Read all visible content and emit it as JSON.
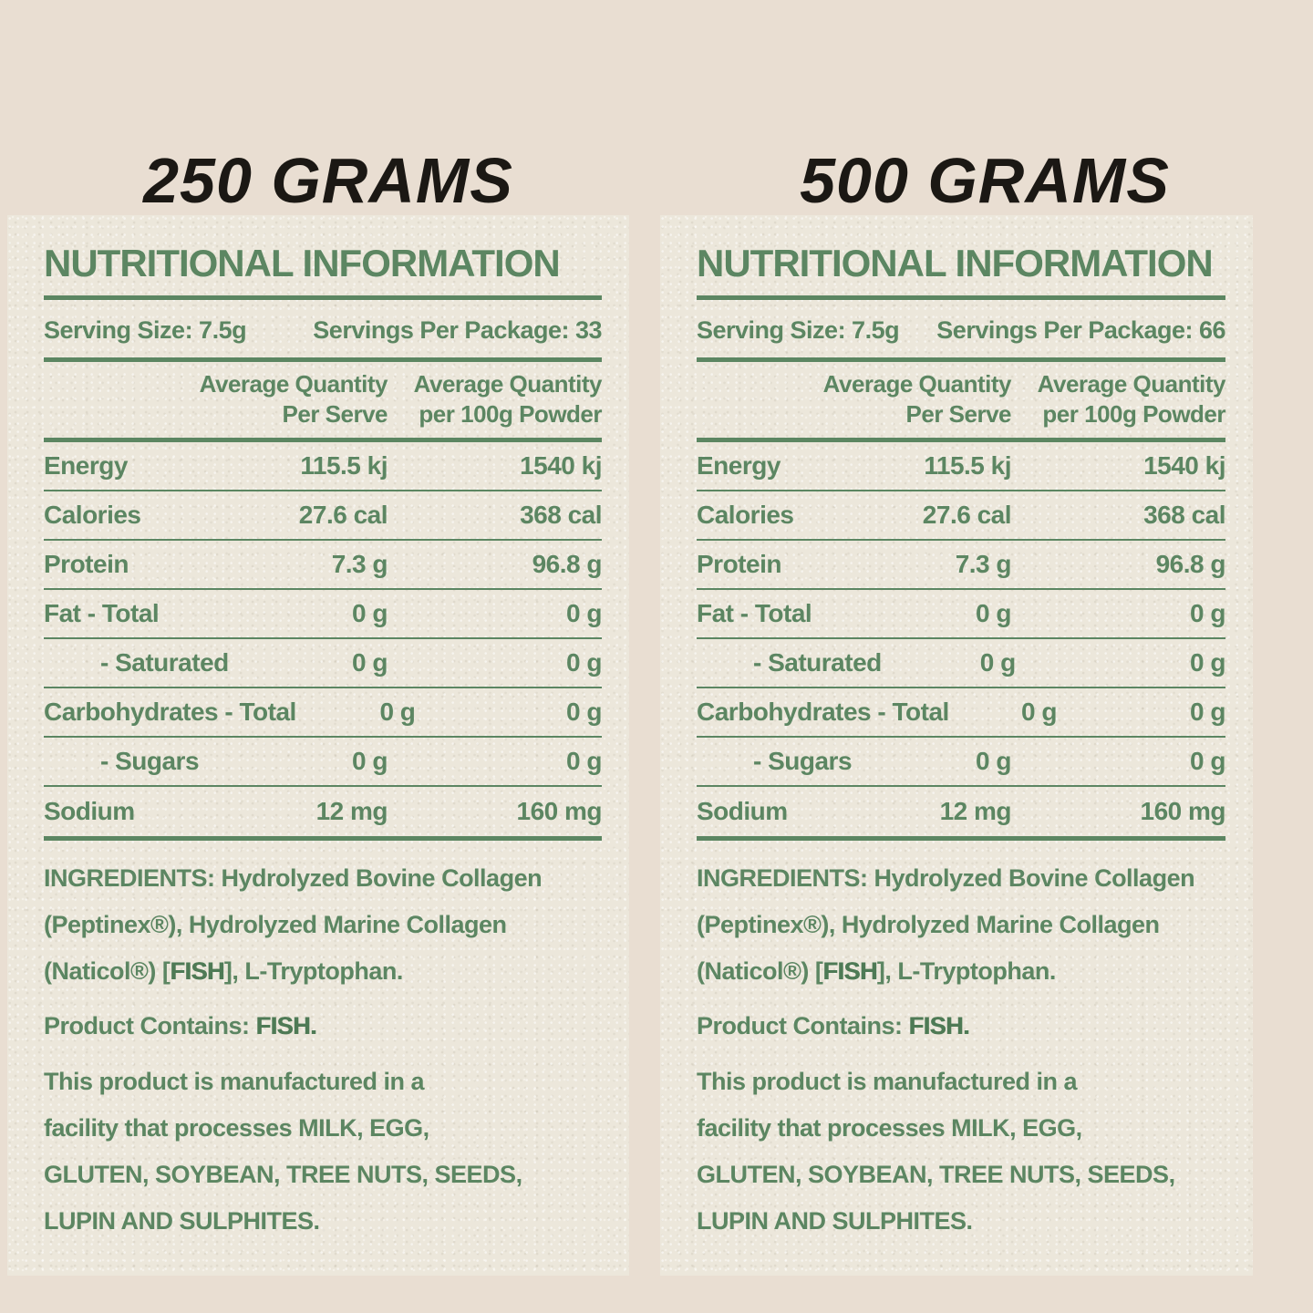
{
  "colors": {
    "page_background": "#e9ded2",
    "paper": "#ece7db",
    "green_text": "#5c8662",
    "heading_black": "#1b1814"
  },
  "panels": [
    {
      "heading": "250 GRAMS",
      "title": "NUTRITIONAL INFORMATION",
      "serving_size_label": "Serving Size: 7.5g",
      "servings_per_package_label": "Servings Per Package: 33",
      "column_headers": {
        "per_serve": "Average Quantity\nPer Serve",
        "per_100g": "Average Quantity\nper 100g Powder"
      },
      "rows": [
        {
          "name": "Energy",
          "per_serve": "115.5 kj",
          "per_100g": "1540 kj"
        },
        {
          "name": "Calories",
          "per_serve": "27.6 cal",
          "per_100g": "368 cal"
        },
        {
          "name": "Protein",
          "per_serve": "7.3 g",
          "per_100g": "96.8 g"
        },
        {
          "name": "Fat - Total",
          "per_serve": "0 g",
          "per_100g": "0 g"
        },
        {
          "name": "- Saturated",
          "per_serve": "0 g",
          "per_100g": "0 g"
        },
        {
          "name": "Carbohydrates - Total",
          "per_serve": "0 g",
          "per_100g": "0 g"
        },
        {
          "name": "- Sugars",
          "per_serve": "0 g",
          "per_100g": "0 g"
        },
        {
          "name": "Sodium",
          "per_serve": "12 mg",
          "per_100g": "160 mg"
        }
      ],
      "ingredients": {
        "lead": "INGREDIENTS: Hydrolyzed Bovine Collagen\n(Peptinex®), Hydrolyzed Marine Collagen\n(Naticol®) [",
        "allergen": "FISH",
        "tail": "], L-Tryptophan."
      },
      "contains": {
        "lead": "Product Contains: ",
        "allergen": "FISH."
      },
      "facility_notice": "This product is manufactured in a\nfacility that processes MILK, EGG,\nGLUTEN, SOYBEAN, TREE NUTS, SEEDS,\nLUPIN AND SULPHITES."
    },
    {
      "heading": "500 GRAMS",
      "title": "NUTRITIONAL INFORMATION",
      "serving_size_label": "Serving Size: 7.5g",
      "servings_per_package_label": "Servings Per Package: 66",
      "column_headers": {
        "per_serve": "Average Quantity\nPer Serve",
        "per_100g": "Average Quantity\nper 100g Powder"
      },
      "rows": [
        {
          "name": "Energy",
          "per_serve": "115.5 kj",
          "per_100g": "1540 kj"
        },
        {
          "name": "Calories",
          "per_serve": "27.6 cal",
          "per_100g": "368 cal"
        },
        {
          "name": "Protein",
          "per_serve": "7.3 g",
          "per_100g": "96.8 g"
        },
        {
          "name": "Fat - Total",
          "per_serve": "0 g",
          "per_100g": "0 g"
        },
        {
          "name": "- Saturated",
          "per_serve": "0 g",
          "per_100g": "0 g"
        },
        {
          "name": "Carbohydrates - Total",
          "per_serve": "0 g",
          "per_100g": "0 g"
        },
        {
          "name": "- Sugars",
          "per_serve": "0 g",
          "per_100g": "0 g"
        },
        {
          "name": "Sodium",
          "per_serve": "12 mg",
          "per_100g": "160 mg"
        }
      ],
      "ingredients": {
        "lead": "INGREDIENTS: Hydrolyzed Bovine Collagen\n(Peptinex®), Hydrolyzed Marine Collagen\n(Naticol®) [",
        "allergen": "FISH",
        "tail": "], L-Tryptophan."
      },
      "contains": {
        "lead": "Product Contains: ",
        "allergen": "FISH."
      },
      "facility_notice": "This product is manufactured in a\nfacility that processes MILK, EGG,\nGLUTEN, SOYBEAN, TREE NUTS, SEEDS,\nLUPIN AND SULPHITES."
    }
  ]
}
